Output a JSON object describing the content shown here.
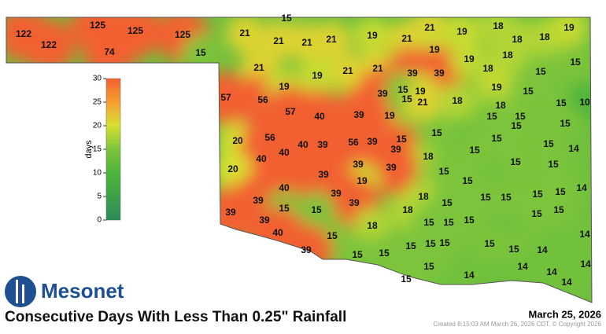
{
  "logo": "Mesonet",
  "title": "Consecutive Days With Less Than 0.25\" Rainfall",
  "date": "March 25, 2026",
  "created": "Created 8:15:03 AM March 26, 2026 CDT. © Copyright 2026",
  "colorbar": {
    "label": "days",
    "ticks": [
      0,
      5,
      10,
      15,
      20,
      25,
      30
    ]
  },
  "map": {
    "values": [
      122,
      122,
      125,
      125,
      74,
      125,
      15,
      15,
      21,
      21,
      21,
      21,
      19,
      21,
      21,
      19,
      18,
      18,
      18,
      19,
      21,
      19,
      21,
      21,
      19,
      39,
      39,
      19,
      18,
      18,
      15,
      15,
      57,
      56,
      19,
      57,
      40,
      39,
      19,
      39,
      15,
      19,
      15,
      21,
      18,
      19,
      18,
      15,
      15,
      10,
      20,
      56,
      40,
      40,
      40,
      39,
      56,
      39,
      15,
      39,
      18,
      15,
      15,
      15,
      15,
      15,
      15,
      15,
      14,
      15,
      20,
      39,
      39,
      39,
      19,
      15,
      15,
      15,
      15,
      14,
      40,
      39,
      39,
      39,
      18,
      15,
      15,
      15,
      15,
      15,
      39,
      39,
      15,
      15,
      18,
      15,
      15,
      15,
      15,
      15,
      40,
      18,
      15,
      15,
      15,
      15,
      15,
      14,
      15,
      14,
      39,
      15,
      15,
      15,
      15,
      14,
      14,
      14,
      14,
      14
    ]
  }
}
